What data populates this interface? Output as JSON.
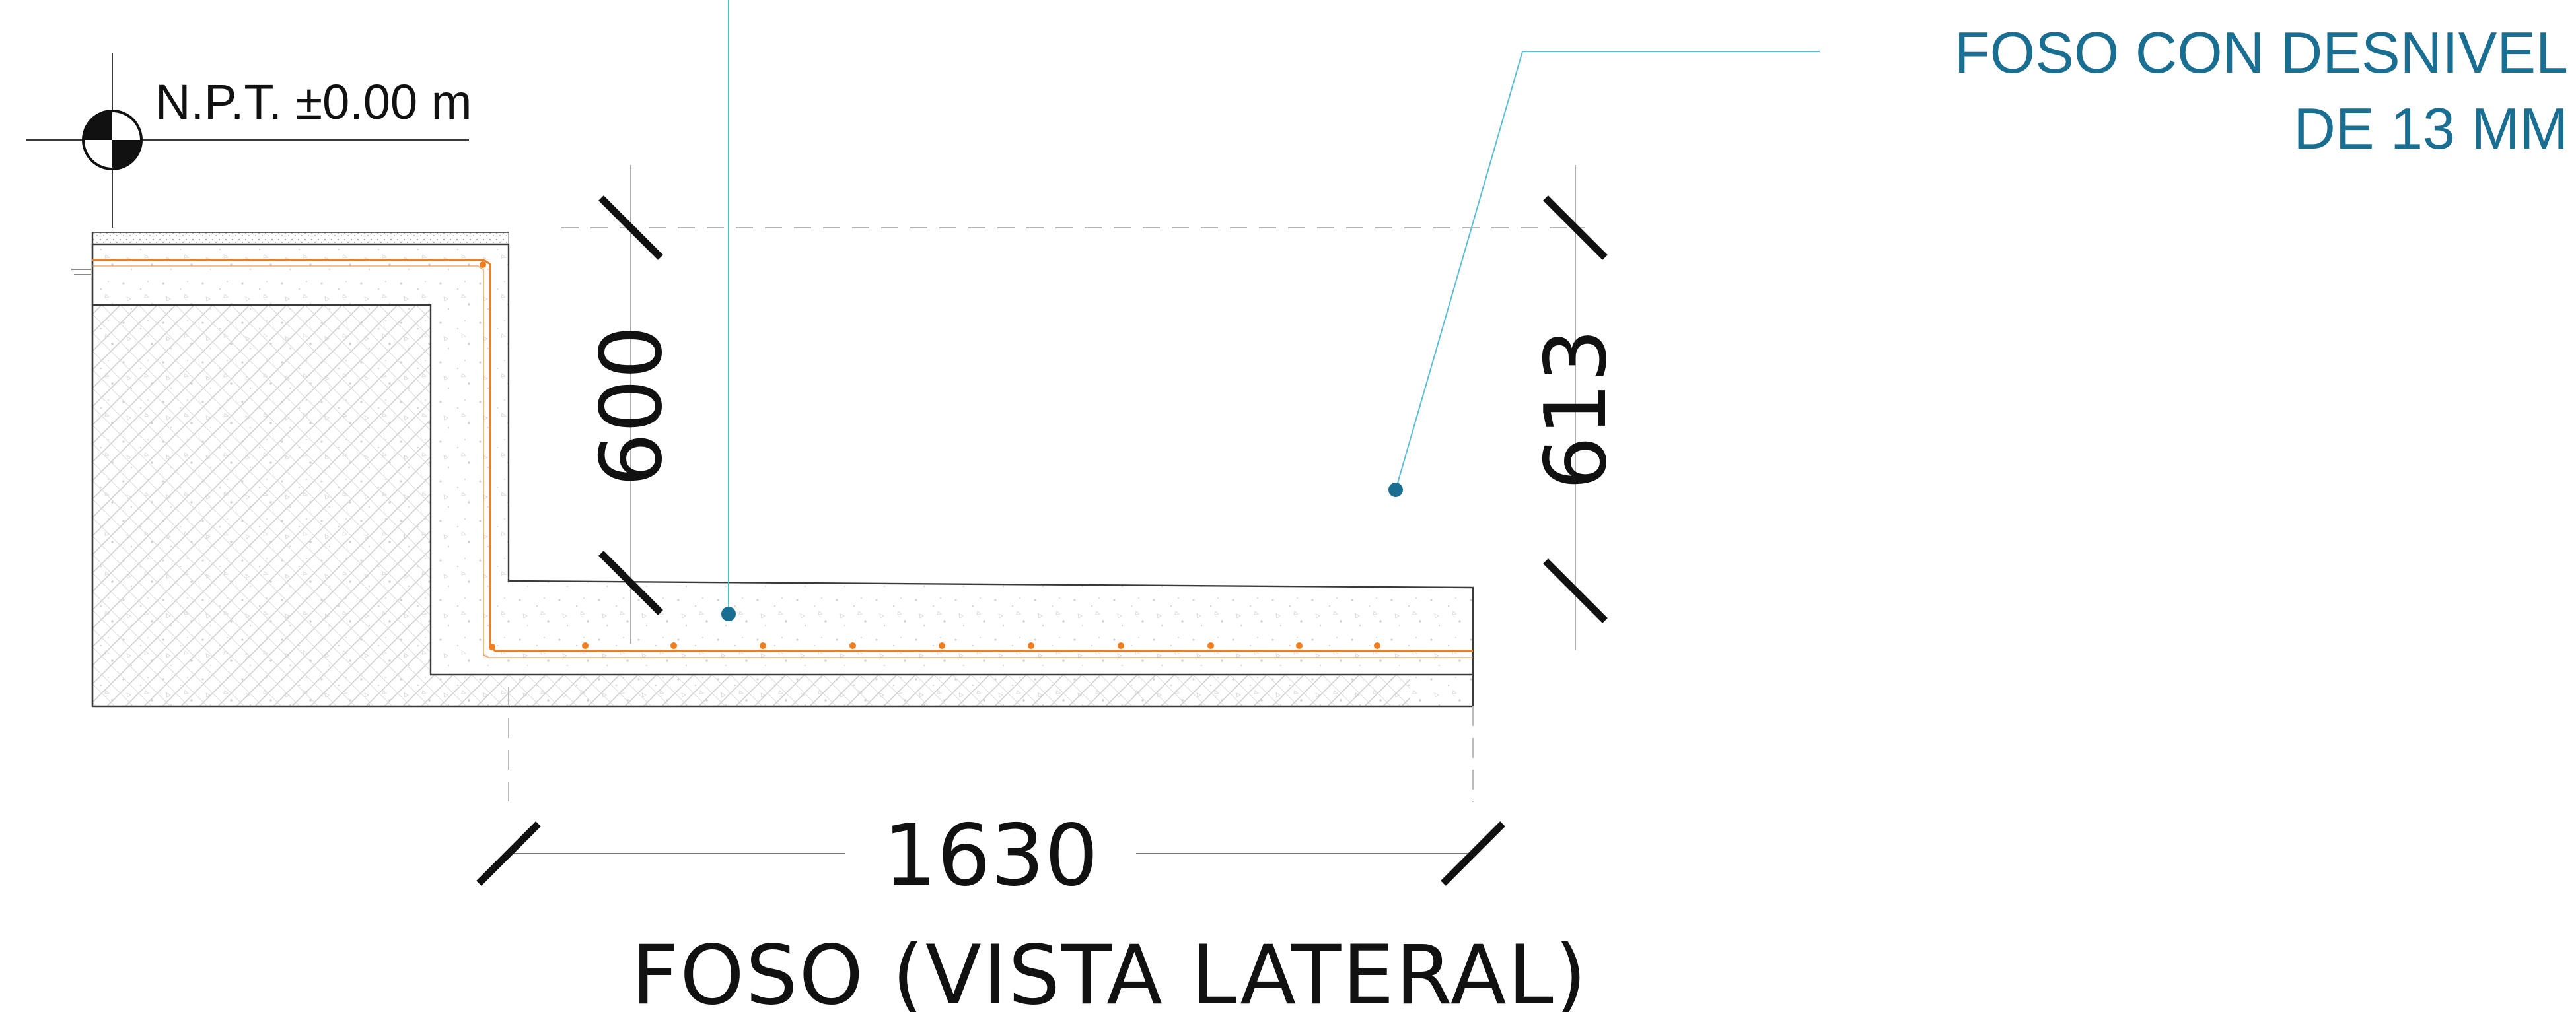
{
  "level_marker": {
    "label": "N.P.T. ±0.00 m"
  },
  "dimensions": {
    "depth_inner": "600",
    "depth_total": "613",
    "length": "1630"
  },
  "callout": {
    "line1": "FOSO CON DESNIVEL",
    "line2": "DE 13 MM"
  },
  "title": "FOSO (VISTA LATERAL)",
  "colors": {
    "callout_text": "#1a6e91",
    "leader_line": "#5bbcd6",
    "rebar": "#f07d1e",
    "outline": "#3a3a3a",
    "background": "#ffffff"
  }
}
